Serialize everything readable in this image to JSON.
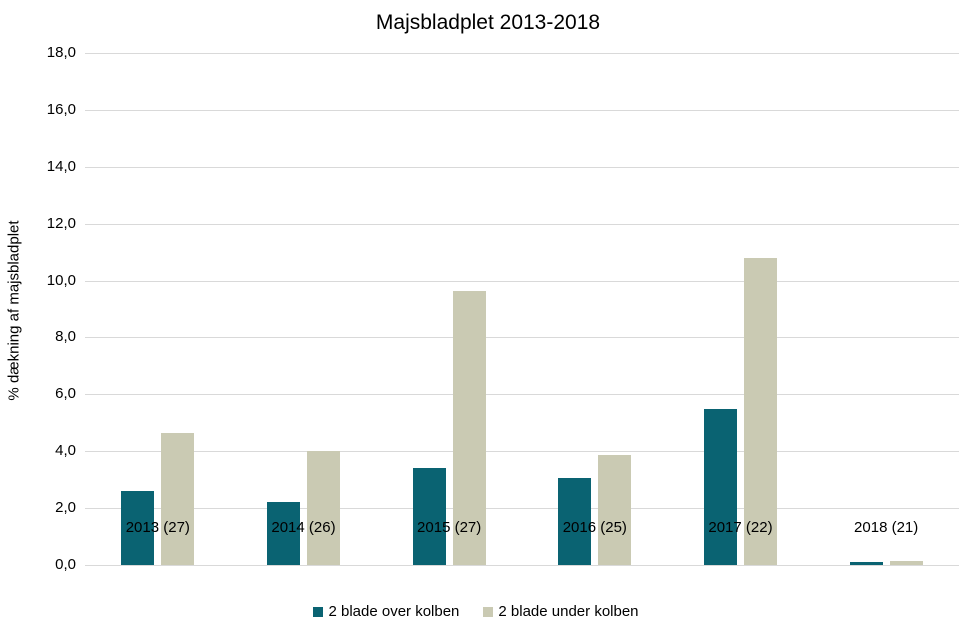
{
  "title": "Majsbladplet 2013-2018",
  "chart_data": {
    "type": "bar",
    "title": "Majsbladplet 2013-2018",
    "xlabel": "",
    "ylabel": "% dækning af majsbladplet",
    "categories": [
      "2013 (27)",
      "2014 (26)",
      "2015 (27)",
      "2016 (25)",
      "2017 (22)",
      "2018 (21)"
    ],
    "series": [
      {
        "name": "2 blade over kolben",
        "color": "#0A6372",
        "values": [
          2.6,
          2.2,
          3.4,
          3.05,
          5.5,
          0.1
        ]
      },
      {
        "name": "2 blade under kolben",
        "color": "#CACAB3",
        "values": [
          4.65,
          4.0,
          9.65,
          3.85,
          10.8,
          0.15
        ]
      }
    ],
    "ylim": [
      0,
      18
    ],
    "ytick_step": 2,
    "ytick_labels": [
      "0,0",
      "2,0",
      "4,0",
      "6,0",
      "8,0",
      "10,0",
      "12,0",
      "14,0",
      "16,0",
      "18,0"
    ],
    "grid": true,
    "legend_position": "bottom"
  },
  "colors": {
    "background": "#FFFFFF",
    "gridline": "#D9D9D9",
    "text": "#000000",
    "series_over": "#0A6372",
    "series_under": "#CACAB3"
  }
}
